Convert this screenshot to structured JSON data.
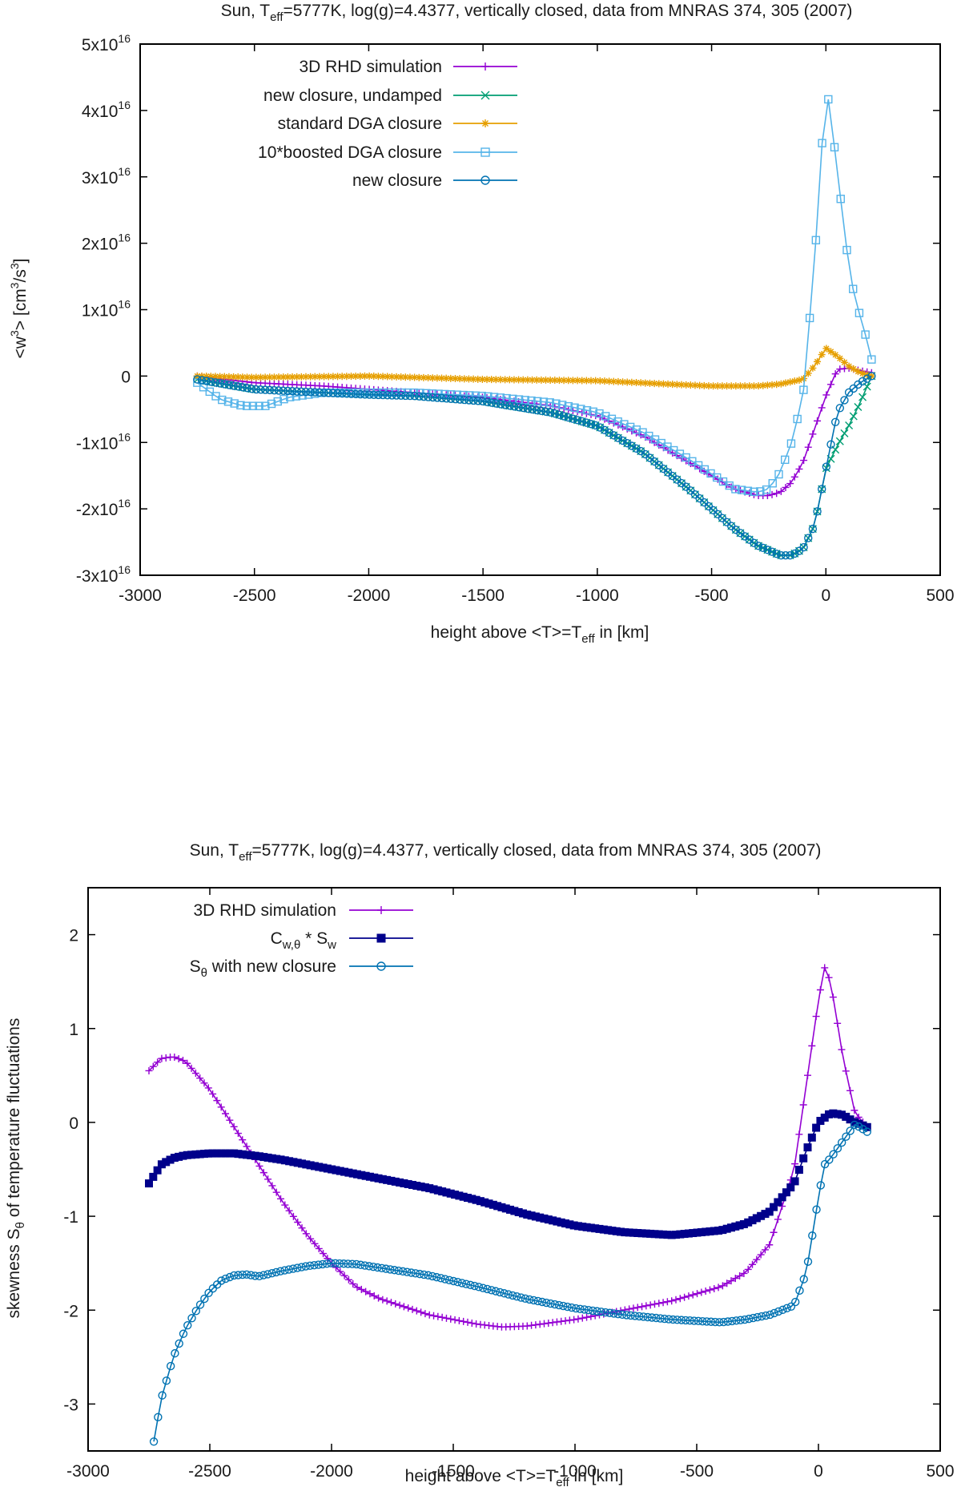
{
  "chart_data": [
    {
      "type": "line",
      "title": {
        "prefix": "Sun, T",
        "sub": "eff",
        "suffix": "=5777K, log(g)=4.4377, vertically closed, data from MNRAS 374, 305 (2007)"
      },
      "xlabel": {
        "prefix": "height above <T>=T",
        "sub": "eff",
        "suffix": " in [km]"
      },
      "ylabel": {
        "a": "<w",
        "sup1": "3",
        "b": "> [cm",
        "sup2": "3",
        "c": "/s",
        "sup3": "3",
        "d": "]"
      },
      "xlim": [
        -3000,
        500
      ],
      "ylim": [
        -3e+16,
        5e+16
      ],
      "xticks": [
        -3000,
        -2500,
        -2000,
        -1500,
        -1000,
        -500,
        0,
        500
      ],
      "xtick_labels": [
        "-3000",
        "-2500",
        "-2000",
        "-1500",
        "-1000",
        "-500",
        "0",
        "500"
      ],
      "yticks": [
        5e+16,
        4e+16,
        3e+16,
        2e+16,
        1e+16,
        0,
        -1e+16,
        -2e+16,
        -3e+16
      ],
      "ytick_labels": [
        {
          "base": "5x10",
          "exp": "16"
        },
        {
          "base": "4x10",
          "exp": "16"
        },
        {
          "base": "3x10",
          "exp": "16"
        },
        {
          "base": "2x10",
          "exp": "16"
        },
        {
          "base": "1x10",
          "exp": "16"
        },
        {
          "base": "0",
          "exp": ""
        },
        {
          "base": "-1x10",
          "exp": "16"
        },
        {
          "base": "-2x10",
          "exp": "16"
        },
        {
          "base": "-3x10",
          "exp": "16"
        }
      ],
      "legend_position": "top-left",
      "series": [
        {
          "name": "3D RHD simulation",
          "color": "#9400d3",
          "marker": "plus",
          "x": [
            -2750,
            -2500,
            -2200,
            -2000,
            -1800,
            -1500,
            -1200,
            -1000,
            -800,
            -600,
            -400,
            -300,
            -250,
            -200,
            -150,
            -100,
            -50,
            0,
            50,
            100,
            150,
            200
          ],
          "y": [
            0.0,
            -1000000000000000.0,
            -1500000000000000.0,
            -2000000000000000.0,
            -2500000000000000.0,
            -3200000000000000.0,
            -4500000000000000.0,
            -6000000000000000.0,
            -9000000000000000.0,
            -1.3e+16,
            -1.7e+16,
            -1.8e+16,
            -1.8e+16,
            -1.75e+16,
            -1.6e+16,
            -1.3e+16,
            -8000000000000000.0,
            -3000000000000000.0,
            1000000000000000.0,
            1200000000000000.0,
            800000000000000.0,
            500000000000000.0
          ]
        },
        {
          "name": "new closure, undamped",
          "color": "#009e73",
          "marker": "cross",
          "x": [
            -2750,
            -2500,
            -2200,
            -2000,
            -1800,
            -1500,
            -1200,
            -1000,
            -800,
            -600,
            -400,
            -300,
            -200,
            -150,
            -100,
            -50,
            0,
            50,
            100,
            150,
            200
          ],
          "y": [
            -500000000000000.0,
            -2000000000000000.0,
            -2500000000000000.0,
            -2800000000000000.0,
            -3000000000000000.0,
            -3800000000000000.0,
            -5500000000000000.0,
            -7500000000000000.0,
            -1.15e+16,
            -1.7e+16,
            -2.3e+16,
            -2.55e+16,
            -2.7e+16,
            -2.7e+16,
            -2.6e+16,
            -2.25e+16,
            -1.4e+16,
            -1.05e+16,
            -7500000000000000.0,
            -4000000000000000.0,
            0.0
          ]
        },
        {
          "name": "standard DGA closure",
          "color": "#e69f00",
          "marker": "star",
          "x": [
            -2750,
            -2500,
            -2000,
            -1500,
            -1000,
            -700,
            -500,
            -300,
            -200,
            -100,
            -50,
            0,
            50,
            100,
            150,
            200
          ],
          "y": [
            0.0,
            -200000000000000.0,
            0.0,
            -500000000000000.0,
            -700000000000000.0,
            -1200000000000000.0,
            -1500000000000000.0,
            -1500000000000000.0,
            -1200000000000000.0,
            -500000000000000.0,
            1500000000000000.0,
            4200000000000000.0,
            3000000000000000.0,
            1500000000000000.0,
            500000000000000.0,
            0.0
          ]
        },
        {
          "name": "10*boosted DGA closure",
          "color": "#56b4e9",
          "marker": "square",
          "x": [
            -2750,
            -2650,
            -2550,
            -2450,
            -2350,
            -2200,
            -2000,
            -1800,
            -1500,
            -1200,
            -1000,
            -800,
            -600,
            -400,
            -300,
            -250,
            -200,
            -150,
            -100,
            -50,
            0,
            25,
            50,
            75,
            100,
            125,
            150,
            175,
            200
          ],
          "y": [
            -1000000000000000.0,
            -3500000000000000.0,
            -4500000000000000.0,
            -4500000000000000.0,
            -3200000000000000.0,
            -2500000000000000.0,
            -2500000000000000.0,
            -2500000000000000.0,
            -3000000000000000.0,
            -4000000000000000.0,
            -5500000000000000.0,
            -8500000000000000.0,
            -1.25e+16,
            -1.7e+16,
            -1.75e+16,
            -1.7e+16,
            -1.45e+16,
            -1e+16,
            -3000000000000000.0,
            1.7e+16,
            4.4e+16,
            3.85e+16,
            3.05e+16,
            2.4e+16,
            1.65e+16,
            1.2e+16,
            9000000000000000.0,
            6000000000000000.0,
            2500000000000000.0
          ]
        },
        {
          "name": "new closure",
          "color": "#0072b2",
          "marker": "circle",
          "x": [
            -2750,
            -2500,
            -2200,
            -2000,
            -1800,
            -1500,
            -1200,
            -1000,
            -800,
            -600,
            -400,
            -300,
            -200,
            -150,
            -100,
            -50,
            0,
            50,
            100,
            150,
            200
          ],
          "y": [
            -500000000000000.0,
            -2000000000000000.0,
            -2500000000000000.0,
            -2800000000000000.0,
            -3000000000000000.0,
            -3800000000000000.0,
            -5500000000000000.0,
            -7500000000000000.0,
            -1.15e+16,
            -1.7e+16,
            -2.3e+16,
            -2.55e+16,
            -2.7e+16,
            -2.7e+16,
            -2.6e+16,
            -2.25e+16,
            -1.4e+16,
            -5500000000000000.0,
            -2500000000000000.0,
            -1000000000000000.0,
            0.0
          ]
        }
      ]
    },
    {
      "type": "line",
      "title": {
        "prefix": "Sun, T",
        "sub": "eff",
        "suffix": "=5777K, log(g)=4.4377, vertically closed, data from MNRAS 374, 305 (2007)"
      },
      "xlabel": {
        "prefix": "height above <T>=T",
        "sub": "eff",
        "suffix": " in [km]"
      },
      "ylabel": {
        "a": "skewness S",
        "sub": "θ",
        "b": " of temperature fluctuations"
      },
      "xlim": [
        -3000,
        500
      ],
      "ylim": [
        -3.5,
        2.5
      ],
      "xticks": [
        -3000,
        -2500,
        -2000,
        -1500,
        -1000,
        -500,
        0,
        500
      ],
      "xtick_labels": [
        "-3000",
        "-2500",
        "-2000",
        "-1500",
        "-1000",
        "-500",
        "0",
        "500"
      ],
      "yticks": [
        2,
        1,
        0,
        -1,
        -2,
        -3
      ],
      "ytick_labels": [
        "2",
        "1",
        "0",
        "-1",
        "-2",
        "-3"
      ],
      "legend_position": "top-left",
      "series": [
        {
          "name": "3D RHD simulation",
          "color": "#9400d3",
          "marker": "plus",
          "x": [
            -2750,
            -2700,
            -2650,
            -2600,
            -2500,
            -2400,
            -2300,
            -2200,
            -2100,
            -2000,
            -1900,
            -1800,
            -1600,
            -1400,
            -1300,
            -1200,
            -1000,
            -800,
            -600,
            -400,
            -300,
            -200,
            -100,
            -50,
            0,
            25,
            50,
            75,
            100,
            150,
            200
          ],
          "y": [
            0.55,
            0.68,
            0.7,
            0.65,
            0.35,
            -0.05,
            -0.45,
            -0.85,
            -1.2,
            -1.5,
            -1.75,
            -1.88,
            -2.05,
            -2.15,
            -2.18,
            -2.17,
            -2.1,
            -2.0,
            -1.9,
            -1.75,
            -1.6,
            -1.3,
            -0.5,
            0.4,
            1.3,
            1.65,
            1.5,
            1.1,
            0.7,
            0.1,
            -0.05
          ]
        },
        {
          "name": "C",
          "name_sub": "w,θ",
          "name_suffix": " * S",
          "name_sub2": "w",
          "color": "#00008b",
          "marker": "filled-square",
          "x": [
            -2750,
            -2700,
            -2650,
            -2600,
            -2500,
            -2400,
            -2300,
            -2200,
            -2000,
            -1800,
            -1600,
            -1400,
            -1200,
            -1000,
            -800,
            -600,
            -400,
            -300,
            -200,
            -100,
            -50,
            0,
            50,
            100,
            150,
            200
          ],
          "y": [
            -0.65,
            -0.45,
            -0.38,
            -0.35,
            -0.33,
            -0.33,
            -0.36,
            -0.4,
            -0.5,
            -0.6,
            -0.7,
            -0.83,
            -0.98,
            -1.1,
            -1.17,
            -1.2,
            -1.15,
            -1.08,
            -0.95,
            -0.65,
            -0.3,
            0.0,
            0.1,
            0.08,
            0.0,
            -0.05
          ]
        },
        {
          "name": "S",
          "name_sub": "θ",
          "name_suffix": " with new closure",
          "color": "#0072b2",
          "marker": "circle",
          "x": [
            -2730,
            -2700,
            -2650,
            -2600,
            -2550,
            -2500,
            -2450,
            -2400,
            -2350,
            -2300,
            -2200,
            -2100,
            -2000,
            -1900,
            -1800,
            -1600,
            -1400,
            -1200,
            -1000,
            -800,
            -600,
            -400,
            -300,
            -200,
            -100,
            -50,
            0,
            25,
            50,
            100,
            150,
            200
          ],
          "y": [
            -3.4,
            -2.95,
            -2.5,
            -2.2,
            -1.98,
            -1.8,
            -1.68,
            -1.63,
            -1.62,
            -1.64,
            -1.58,
            -1.53,
            -1.5,
            -1.51,
            -1.55,
            -1.63,
            -1.75,
            -1.88,
            -1.98,
            -2.05,
            -2.1,
            -2.13,
            -2.1,
            -2.05,
            -1.95,
            -1.6,
            -0.8,
            -0.45,
            -0.38,
            -0.2,
            -0.02,
            -0.1
          ]
        }
      ]
    }
  ]
}
